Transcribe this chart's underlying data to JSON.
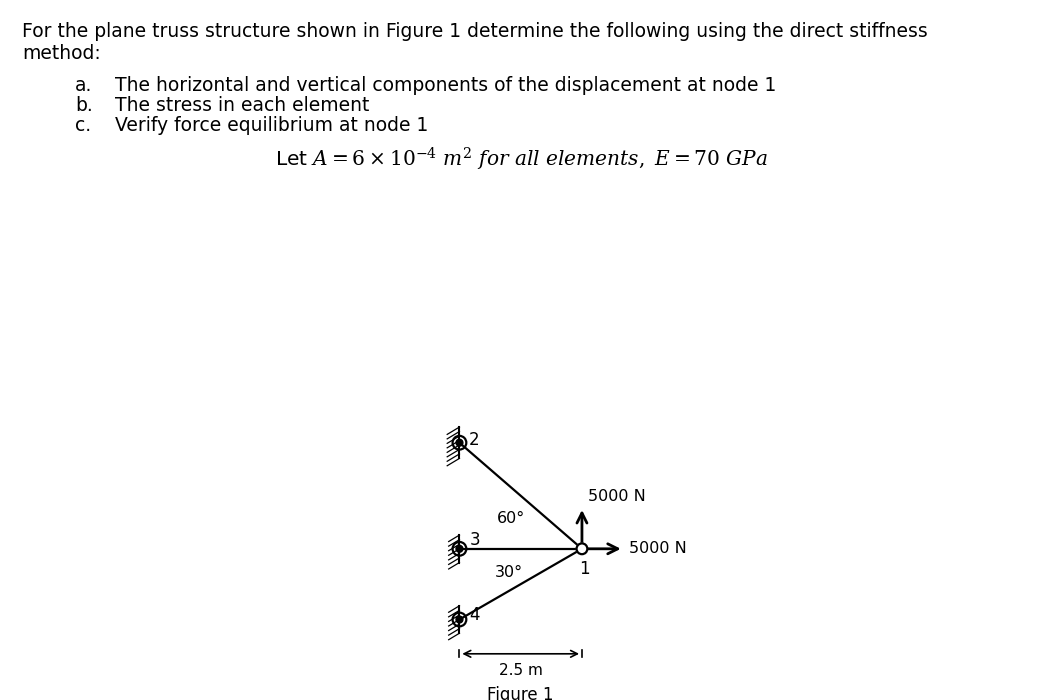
{
  "title_line1": "For the plane truss structure shown in Figure 1 determine the following using the direct stiffness",
  "title_line2": "method:",
  "items": [
    [
      "a.",
      "The horizontal and vertical components of the displacement at node 1"
    ],
    [
      "b.",
      "The stress in each element"
    ],
    [
      "c.",
      "Verify force equilibrium at node 1"
    ]
  ],
  "formula": "Let $A = 6 \\times 10^{-4}$ $m^2$ $for\\ all\\ elements,\\ E = 70\\ GPa$",
  "figure_caption": "Figure 1",
  "bg_color": "#ffffff",
  "text_color": "#000000",
  "n1": [
    2.5,
    0.0
  ],
  "n2": [
    0.0,
    2.165
  ],
  "n3": [
    0.0,
    0.0
  ],
  "n4": [
    0.0,
    -1.443
  ],
  "angle_60": "60°",
  "angle_30": "30°",
  "dim_label": "2.5 m",
  "force_label": "5000 N"
}
